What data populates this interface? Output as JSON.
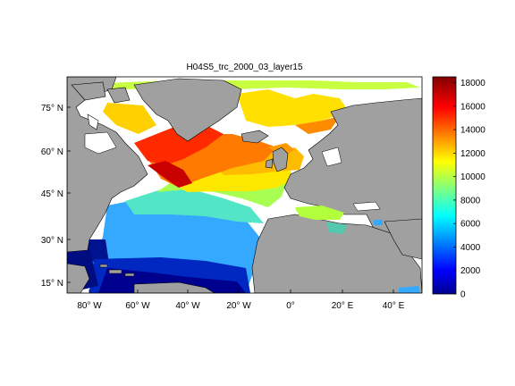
{
  "title": "H04S5_trc_2000_03_layer15",
  "map": {
    "x_ticks": [
      "80° W",
      "60° W",
      "40° W",
      "20° W",
      "0°",
      "20° E",
      "40° E"
    ],
    "y_ticks": [
      "75° N",
      "60° N",
      "45° N",
      "30° N",
      "15° N"
    ],
    "land_color": "#a0a0a0",
    "no_data_color": "#ffffff"
  },
  "colorbar": {
    "min": 0,
    "max": 18500,
    "ticks": [
      "0",
      "2000",
      "4000",
      "6000",
      "8000",
      "10000",
      "12000",
      "14000",
      "16000",
      "18000"
    ],
    "colormap": "jet"
  }
}
